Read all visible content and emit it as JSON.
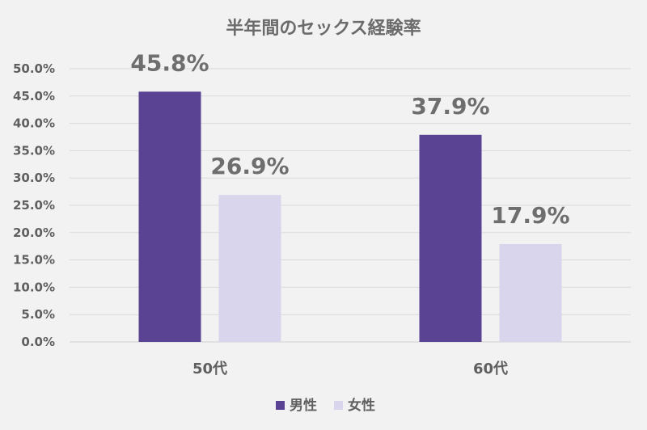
{
  "chart_data": {
    "type": "bar",
    "title": "半年間のセックス経験率",
    "categories": [
      "50代",
      "60代"
    ],
    "series": [
      {
        "name": "男性",
        "values": [
          45.8,
          37.9
        ],
        "color": "#5b4393"
      },
      {
        "name": "女性",
        "values": [
          26.9,
          17.9
        ],
        "color": "#d9d5ec"
      }
    ],
    "data_labels": [
      [
        "45.8%",
        "37.9%"
      ],
      [
        "26.9%",
        "17.9%"
      ]
    ],
    "ylim": [
      0,
      50
    ],
    "yticks": [
      0,
      5,
      10,
      15,
      20,
      25,
      30,
      35,
      40,
      45,
      50
    ],
    "ytick_labels": [
      "0.0%",
      "5.0%",
      "10.0%",
      "15.0%",
      "20.0%",
      "25.0%",
      "30.0%",
      "35.0%",
      "40.0%",
      "45.0%",
      "50.0%"
    ],
    "xlabel": "",
    "ylabel": "",
    "grid": true,
    "legend_position": "bottom"
  }
}
